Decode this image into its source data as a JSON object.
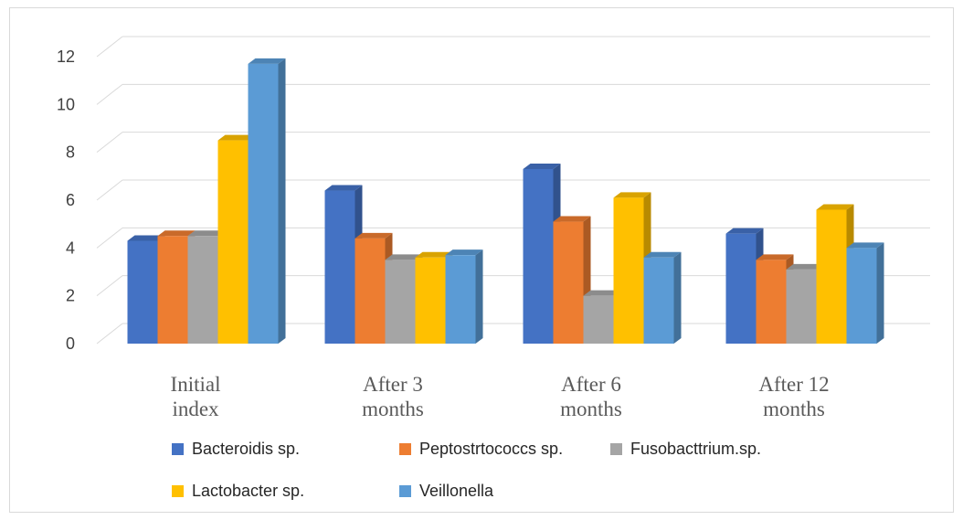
{
  "chart_data": {
    "type": "bar",
    "style": "3d-clustered-column",
    "title": "",
    "xlabel": "",
    "ylabel": "",
    "categories": [
      [
        "Initial",
        "index"
      ],
      [
        "After 3",
        "months"
      ],
      [
        "After 6",
        "months"
      ],
      [
        "After 12",
        "months"
      ]
    ],
    "yticks": [
      "0",
      "2",
      "4",
      "6",
      "8",
      "10",
      "12"
    ],
    "ylim": [
      0,
      12
    ],
    "grid": true,
    "legend_position": "bottom",
    "series": [
      {
        "name": "Bacteroidis sp.",
        "color": "#4472C4",
        "values": [
          4.3,
          6.4,
          7.3,
          4.6
        ]
      },
      {
        "name": "Peptostrtococcs sp.",
        "color": "#ED7D31",
        "values": [
          4.5,
          4.4,
          5.1,
          3.5
        ]
      },
      {
        "name": "Fusobacttrium.sp.",
        "color": "#A5A5A5",
        "values": [
          4.5,
          3.5,
          2.0,
          3.1
        ]
      },
      {
        "name": "Lactobacter sp.",
        "color": "#FFC000",
        "values": [
          8.5,
          3.6,
          6.1,
          5.6
        ]
      },
      {
        "name": "Veillonella",
        "color": "#5B9BD5",
        "values": [
          11.7,
          3.7,
          3.6,
          4.0
        ]
      }
    ]
  }
}
